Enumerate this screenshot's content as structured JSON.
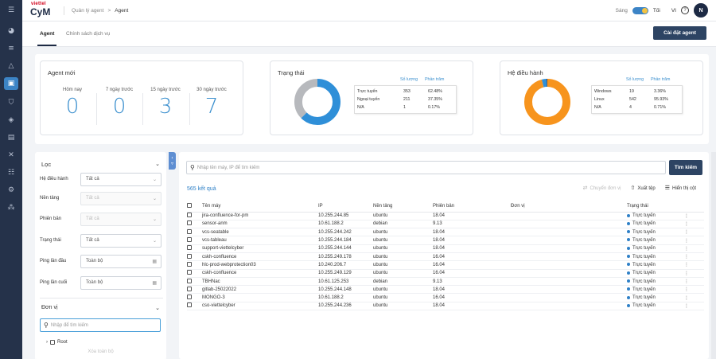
{
  "brand": {
    "top": "viettel",
    "name": "CyM"
  },
  "breadcrumb": {
    "parent": "Quản lý agent",
    "sep": ">",
    "current": "Agent"
  },
  "topbar": {
    "theme_label": "Sáng",
    "theme_other": "Tối",
    "lang": "VI",
    "help": "?",
    "avatar": "N"
  },
  "rail_icons": [
    "menu-icon",
    "dashboard-icon",
    "list-icon",
    "alert-icon",
    "monitor-icon",
    "shield-icon",
    "shield-check-icon",
    "log-icon",
    "tools-icon",
    "users-icon",
    "settings-icon",
    "network-icon"
  ],
  "tabs": [
    {
      "label": "Agent",
      "active": true
    },
    {
      "label": "Chính sách dịch vụ",
      "active": false
    }
  ],
  "install_button": "Cài đặt agent",
  "new_agents": {
    "title": "Agent mới",
    "items": [
      {
        "label": "Hôm nay",
        "value": "0"
      },
      {
        "label": "7 ngày trước",
        "value": "0"
      },
      {
        "label": "15 ngày trước",
        "value": "3"
      },
      {
        "label": "30 ngày trước",
        "value": "7"
      }
    ]
  },
  "status": {
    "title": "Trạng thái",
    "col_count": "Số lượng",
    "col_pct": "Phần trăm",
    "rows": [
      {
        "name": "Trực tuyến",
        "count": "353",
        "pct": "62.48%"
      },
      {
        "name": "Ngoại tuyến",
        "count": "211",
        "pct": "37.35%"
      },
      {
        "name": "N/A",
        "count": "1",
        "pct": "0.17%"
      }
    ],
    "colors": {
      "online": "#2f8fd8",
      "offline": "#b7b9bd",
      "na": "#2d4463"
    }
  },
  "os": {
    "title": "Hệ điều hành",
    "col_count": "Số lượng",
    "col_pct": "Phần trăm",
    "rows": [
      {
        "name": "Windows",
        "count": "19",
        "pct": "3.36%"
      },
      {
        "name": "Linux",
        "count": "542",
        "pct": "95.93%"
      },
      {
        "name": "N/A",
        "count": "4",
        "pct": "0.71%"
      }
    ],
    "colors": {
      "windows": "#2f8fd8",
      "linux": "#f7941d",
      "na": "#2d4463"
    }
  },
  "filter": {
    "title": "Lọc",
    "os_label": "Hệ điều hành",
    "os_value": "Tất cả",
    "platform_label": "Nền tảng",
    "platform_value": "Tất cả",
    "version_label": "Phiên bản",
    "version_value": "Tất cả",
    "status_label": "Trạng thái",
    "status_value": "Tất cả",
    "ping_first_label": "Ping lần đầu",
    "ping_first_value": "Toàn bộ",
    "ping_last_label": "Ping lần cuối",
    "ping_last_value": "Toàn bộ",
    "unit_title": "Đơn vị",
    "unit_search_placeholder": "Nhập để tìm kiếm",
    "tree_root": "Root",
    "clear_all": "Xóa toàn bộ"
  },
  "main": {
    "search_placeholder": "Nhập tên máy, IP để tìm kiếm",
    "search_button": "Tìm kiếm",
    "result_count": "565 kết quả",
    "move_unit": "Chuyển đơn vị",
    "export": "Xuất tệp",
    "show_columns": "Hiển thị cột"
  },
  "table": {
    "headers": [
      "Tên máy",
      "IP",
      "Nền tảng",
      "Phiên bản",
      "Đơn vị",
      "Trạng thái"
    ],
    "rows": [
      {
        "name": "jira-confluence-for-pm",
        "ip": "10.255.244.85",
        "platform": "ubuntu",
        "version": "18.04",
        "unit": "",
        "status": "Trực tuyến"
      },
      {
        "name": "sensor-anm",
        "ip": "10.61.188.2",
        "platform": "debian",
        "version": "9.13",
        "unit": "",
        "status": "Trực tuyến"
      },
      {
        "name": "vcs-seatable",
        "ip": "10.255.244.242",
        "platform": "ubuntu",
        "version": "18.04",
        "unit": "",
        "status": "Trực tuyến"
      },
      {
        "name": "vcs-tableau",
        "ip": "10.255.244.184",
        "platform": "ubuntu",
        "version": "18.04",
        "unit": "",
        "status": "Trực tuyến"
      },
      {
        "name": "support-viettelcyber",
        "ip": "10.255.244.144",
        "platform": "ubuntu",
        "version": "18.04",
        "unit": "",
        "status": "Trực tuyến"
      },
      {
        "name": "cskh-confluence",
        "ip": "10.255.249.178",
        "platform": "ubuntu",
        "version": "16.04",
        "unit": "",
        "status": "Trực tuyến"
      },
      {
        "name": "hlc-prod-webprotection03",
        "ip": "10.240.206.7",
        "platform": "ubuntu",
        "version": "16.04",
        "unit": "",
        "status": "Trực tuyến"
      },
      {
        "name": "cskh-confluence",
        "ip": "10.255.249.129",
        "platform": "ubuntu",
        "version": "16.04",
        "unit": "",
        "status": "Trực tuyến"
      },
      {
        "name": "TBHNac",
        "ip": "10.61.125.253",
        "platform": "debian",
        "version": "9.13",
        "unit": "",
        "status": "Trực tuyến"
      },
      {
        "name": "gitlab-25022022",
        "ip": "10.255.244.148",
        "platform": "ubuntu",
        "version": "18.04",
        "unit": "",
        "status": "Trực tuyến"
      },
      {
        "name": "MONGO-3",
        "ip": "10.61.188.2",
        "platform": "ubuntu",
        "version": "16.04",
        "unit": "",
        "status": "Trực tuyến"
      },
      {
        "name": "cso-viettelcyber",
        "ip": "10.255.244.236",
        "platform": "ubuntu",
        "version": "18.04",
        "unit": "",
        "status": "Trực tuyến"
      }
    ]
  }
}
